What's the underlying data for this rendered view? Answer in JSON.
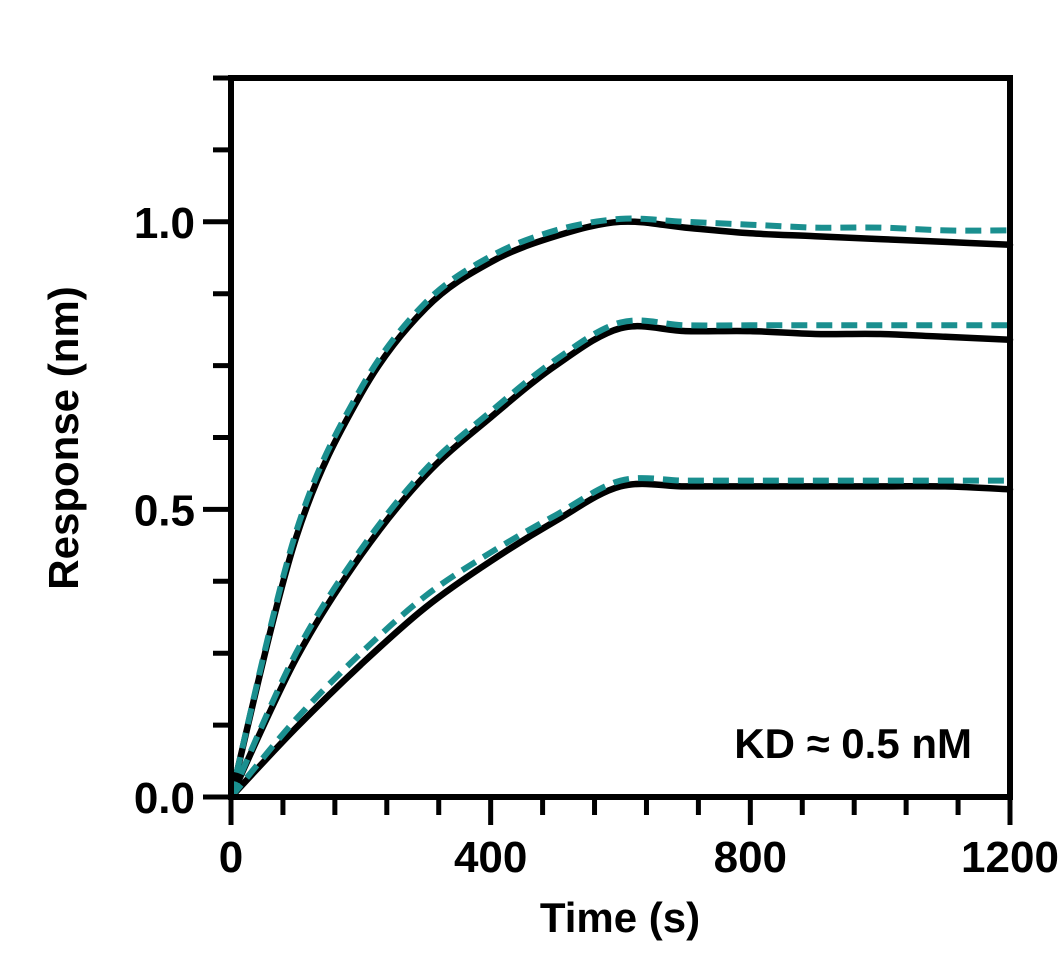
{
  "chart_data": {
    "type": "line",
    "xlabel": "Time (s)",
    "ylabel": "Response (nm)",
    "xlim": [
      0,
      1200
    ],
    "ylim": [
      0,
      1.25
    ],
    "x_ticks": [
      0,
      400,
      800,
      1200
    ],
    "x_tick_labels": [
      "0",
      "400",
      "800",
      "1200"
    ],
    "y_ticks": [
      0.0,
      0.5,
      1.0
    ],
    "y_tick_labels": [
      "0.0",
      "0.5",
      "1.0"
    ],
    "x_minor_step": 80,
    "y_minor_step": 0.125,
    "grid": false,
    "annotation": "KD ≈ 0.5 nM",
    "colors": {
      "measured": "#000000",
      "fit": "#1a8f8f"
    },
    "x": [
      0,
      100,
      200,
      300,
      400,
      500,
      600,
      700,
      800,
      900,
      1000,
      1100,
      1200
    ],
    "series": [
      {
        "style": "solid",
        "color": "#000000",
        "values": [
          0,
          0.45,
          0.7,
          0.85,
          0.93,
          0.975,
          1.0,
          0.99,
          0.98,
          0.975,
          0.97,
          0.965,
          0.96
        ]
      },
      {
        "style": "dashed",
        "color": "#1a8f8f",
        "values": [
          0,
          0.46,
          0.71,
          0.86,
          0.94,
          0.985,
          1.005,
          1.0,
          0.995,
          0.99,
          0.99,
          0.985,
          0.985
        ]
      },
      {
        "style": "solid",
        "color": "#000000",
        "values": [
          0,
          0.24,
          0.42,
          0.56,
          0.66,
          0.75,
          0.815,
          0.81,
          0.81,
          0.805,
          0.805,
          0.8,
          0.795
        ]
      },
      {
        "style": "dashed",
        "color": "#1a8f8f",
        "values": [
          0,
          0.25,
          0.43,
          0.57,
          0.67,
          0.76,
          0.825,
          0.82,
          0.82,
          0.82,
          0.82,
          0.82,
          0.82
        ]
      },
      {
        "style": "solid",
        "color": "#000000",
        "values": [
          0,
          0.12,
          0.23,
          0.33,
          0.41,
          0.48,
          0.54,
          0.54,
          0.54,
          0.54,
          0.54,
          0.54,
          0.535
        ]
      },
      {
        "style": "dashed",
        "color": "#1a8f8f",
        "values": [
          0,
          0.135,
          0.25,
          0.35,
          0.425,
          0.49,
          0.55,
          0.55,
          0.55,
          0.55,
          0.55,
          0.55,
          0.55
        ]
      }
    ]
  }
}
